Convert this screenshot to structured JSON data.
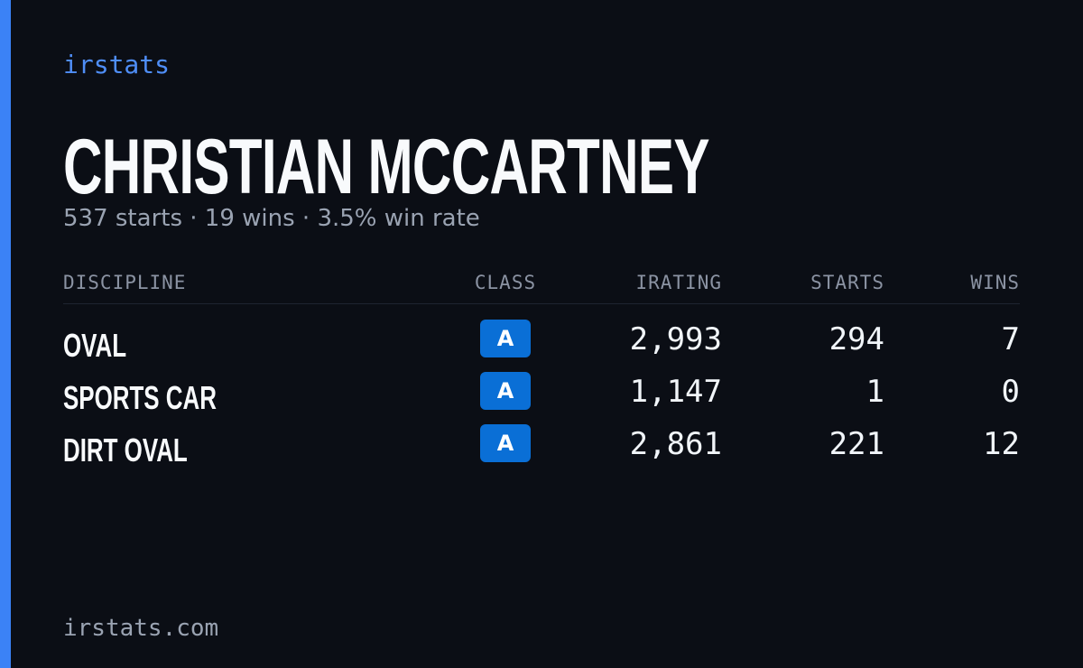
{
  "brand": "irstats",
  "profile": {
    "name": "CHRISTIAN MCCARTNEY",
    "summary": "537 starts · 19 wins · 3.5% win rate"
  },
  "table": {
    "headers": [
      "DISCIPLINE",
      "CLASS",
      "IRATING",
      "STARTS",
      "WINS"
    ],
    "rows": [
      [
        "OVAL",
        "A",
        "2,993",
        "294",
        "7"
      ],
      [
        "SPORTS CAR",
        "A",
        "1,147",
        "1",
        "0"
      ],
      [
        "DIRT OVAL",
        "A",
        "2,861",
        "221",
        "12"
      ]
    ]
  },
  "footer": "irstats.com"
}
